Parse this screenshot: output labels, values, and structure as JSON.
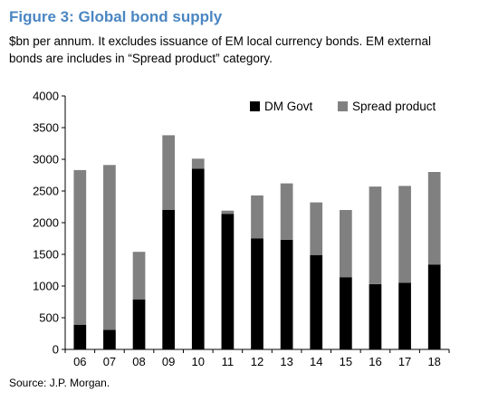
{
  "title": "Figure 3: Global bond supply",
  "subtitle": "$bn per annum. It excludes issuance of EM local currency bonds. EM external bonds are includes in “Spread product” category.",
  "source": "Source: J.P. Morgan.",
  "colors": {
    "dm_govt": "#000000",
    "spread_product": "#808080",
    "title": "#4a86c2"
  },
  "chart_data": {
    "type": "bar",
    "stacked": true,
    "categories": [
      "06",
      "07",
      "08",
      "09",
      "10",
      "11",
      "12",
      "13",
      "14",
      "15",
      "16",
      "17",
      "18"
    ],
    "series": [
      {
        "name": "DM Govt",
        "values": [
          390,
          310,
          790,
          2200,
          2850,
          2140,
          1750,
          1730,
          1490,
          1140,
          1030,
          1050,
          1340
        ]
      },
      {
        "name": "Spread product",
        "values": [
          2440,
          2600,
          750,
          1180,
          160,
          50,
          680,
          890,
          830,
          1060,
          1540,
          1530,
          1460
        ]
      }
    ],
    "yticks": [
      "0",
      "500",
      "1000",
      "1500",
      "2000",
      "2500",
      "3000",
      "3500",
      "4000"
    ],
    "ylim": [
      0,
      4000
    ],
    "grid": false,
    "legend": "top-right"
  }
}
